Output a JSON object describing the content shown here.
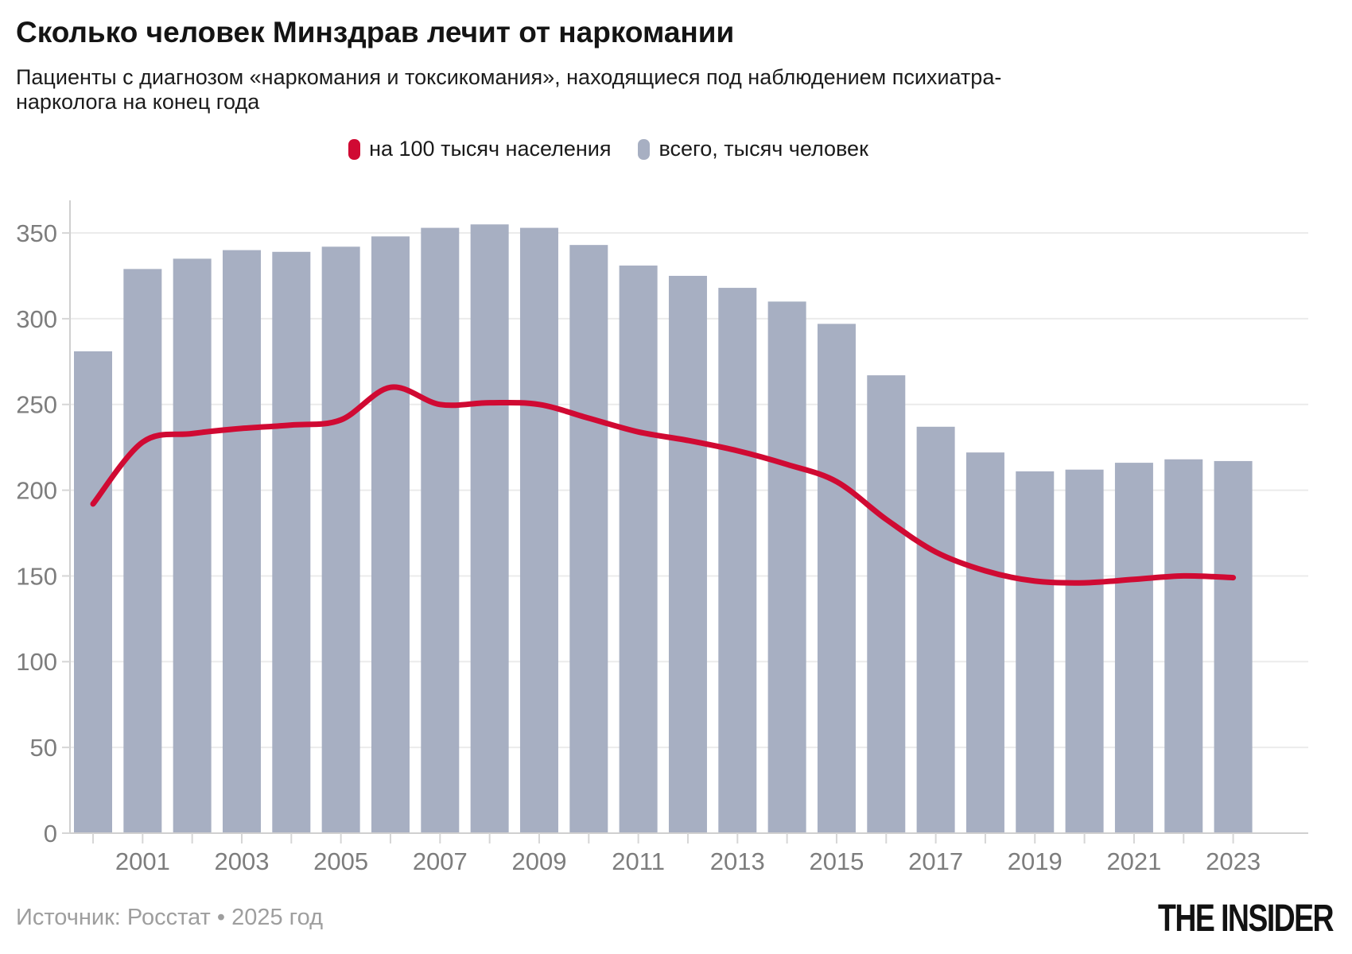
{
  "header": {
    "title": "Сколько человек Минздрав лечит от наркомании",
    "subtitle_line1": "Пациенты с диагнозом «наркомания и токсикомания», находящиеся под наблюдением психиатра-",
    "subtitle_line2": "нарколога на конец года"
  },
  "legend": {
    "items": [
      {
        "label": "на 100 тысяч населения",
        "color": "#d00a33"
      },
      {
        "label": "всего, тысяч человек",
        "color": "#a7afc2"
      }
    ]
  },
  "chart_data": {
    "type": "combo",
    "title": "Сколько человек Минздрав лечит от наркомании",
    "categories": [
      2000,
      2001,
      2002,
      2003,
      2004,
      2005,
      2006,
      2007,
      2008,
      2009,
      2010,
      2011,
      2012,
      2013,
      2014,
      2015,
      2016,
      2017,
      2018,
      2019,
      2020,
      2021,
      2022,
      2023
    ],
    "series": [
      {
        "name": "на 100 тысяч населения",
        "type": "line",
        "color": "#d00a33",
        "values": [
          192,
          228,
          233,
          236,
          238,
          241,
          260,
          250,
          251,
          250,
          242,
          234,
          229,
          223,
          215,
          205,
          183,
          164,
          153,
          147,
          146,
          148,
          150,
          149
        ]
      },
      {
        "name": "всего, тысяч человек",
        "type": "bar",
        "color": "#a7afc2",
        "values": [
          281,
          329,
          335,
          340,
          339,
          342,
          348,
          353,
          355,
          353,
          343,
          331,
          325,
          318,
          310,
          297,
          267,
          237,
          222,
          211,
          212,
          216,
          218,
          217
        ]
      }
    ],
    "y_axis": {
      "ticks": [
        0,
        50,
        100,
        150,
        200,
        250,
        300,
        350
      ],
      "range": [
        0,
        368
      ]
    },
    "x_axis": {
      "labeled_years": [
        "2001",
        "2003",
        "2005",
        "2007",
        "2009",
        "2011",
        "2013",
        "2015",
        "2017",
        "2019",
        "2021",
        "2023"
      ]
    },
    "grid": true,
    "legend_position": "top",
    "colors": {
      "grid": "#ebebeb",
      "axis": "#cfcfcf",
      "tick": "#d6d6d6",
      "axis_label": "#7d7d7d"
    }
  },
  "footer": {
    "source": "Источник: Росстат • 2025 год",
    "logo": "THE INSIDER"
  }
}
